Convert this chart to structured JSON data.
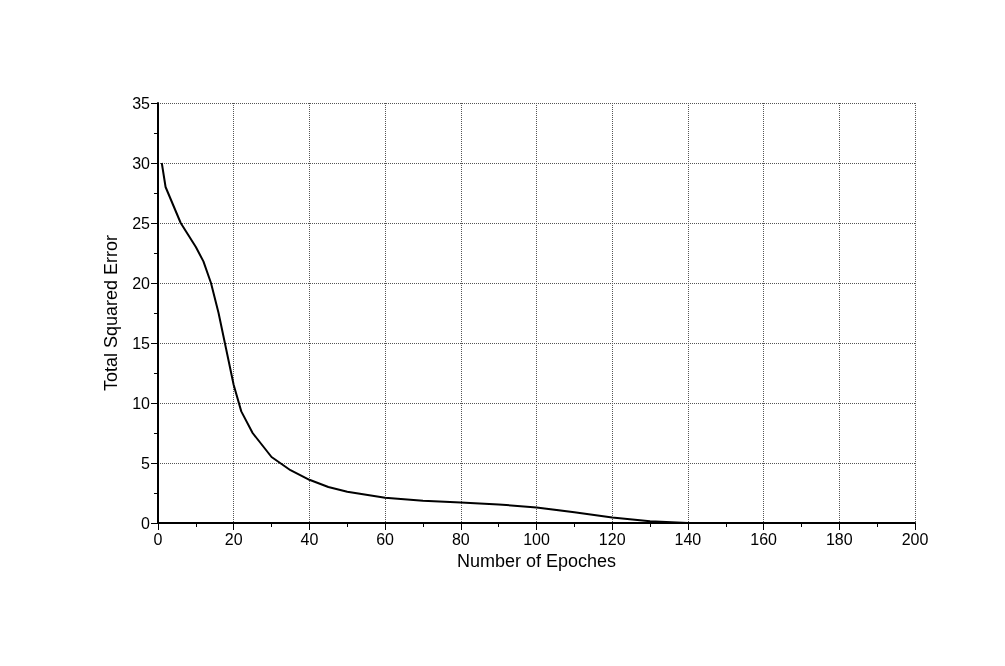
{
  "chart_data": {
    "type": "line",
    "xlabel": "Number of Epoches",
    "ylabel": "Total Squared Error",
    "x": [
      1,
      2,
      4,
      6,
      8,
      10,
      12,
      14,
      16,
      18,
      20,
      22,
      25,
      30,
      35,
      40,
      45,
      50,
      60,
      70,
      80,
      90,
      100,
      110,
      120,
      130,
      140,
      160
    ],
    "values": [
      30,
      28,
      26.5,
      25,
      24,
      23,
      21.8,
      20,
      17.5,
      14.5,
      11.5,
      9.3,
      7.5,
      5.5,
      4.4,
      3.6,
      3,
      2.6,
      2.1,
      1.85,
      1.7,
      1.55,
      1.3,
      0.9,
      0.45,
      0.15,
      0,
      0
    ],
    "color": "#000000",
    "xlim": [
      0,
      200
    ],
    "xticks": [
      0,
      20,
      40,
      60,
      80,
      100,
      120,
      140,
      160,
      180,
      200
    ],
    "ylim": [
      0,
      35
    ],
    "yticks": [
      0,
      5,
      10,
      15,
      20,
      25,
      30,
      35
    ],
    "grid": true,
    "marker": "none",
    "line_style": "solid"
  }
}
